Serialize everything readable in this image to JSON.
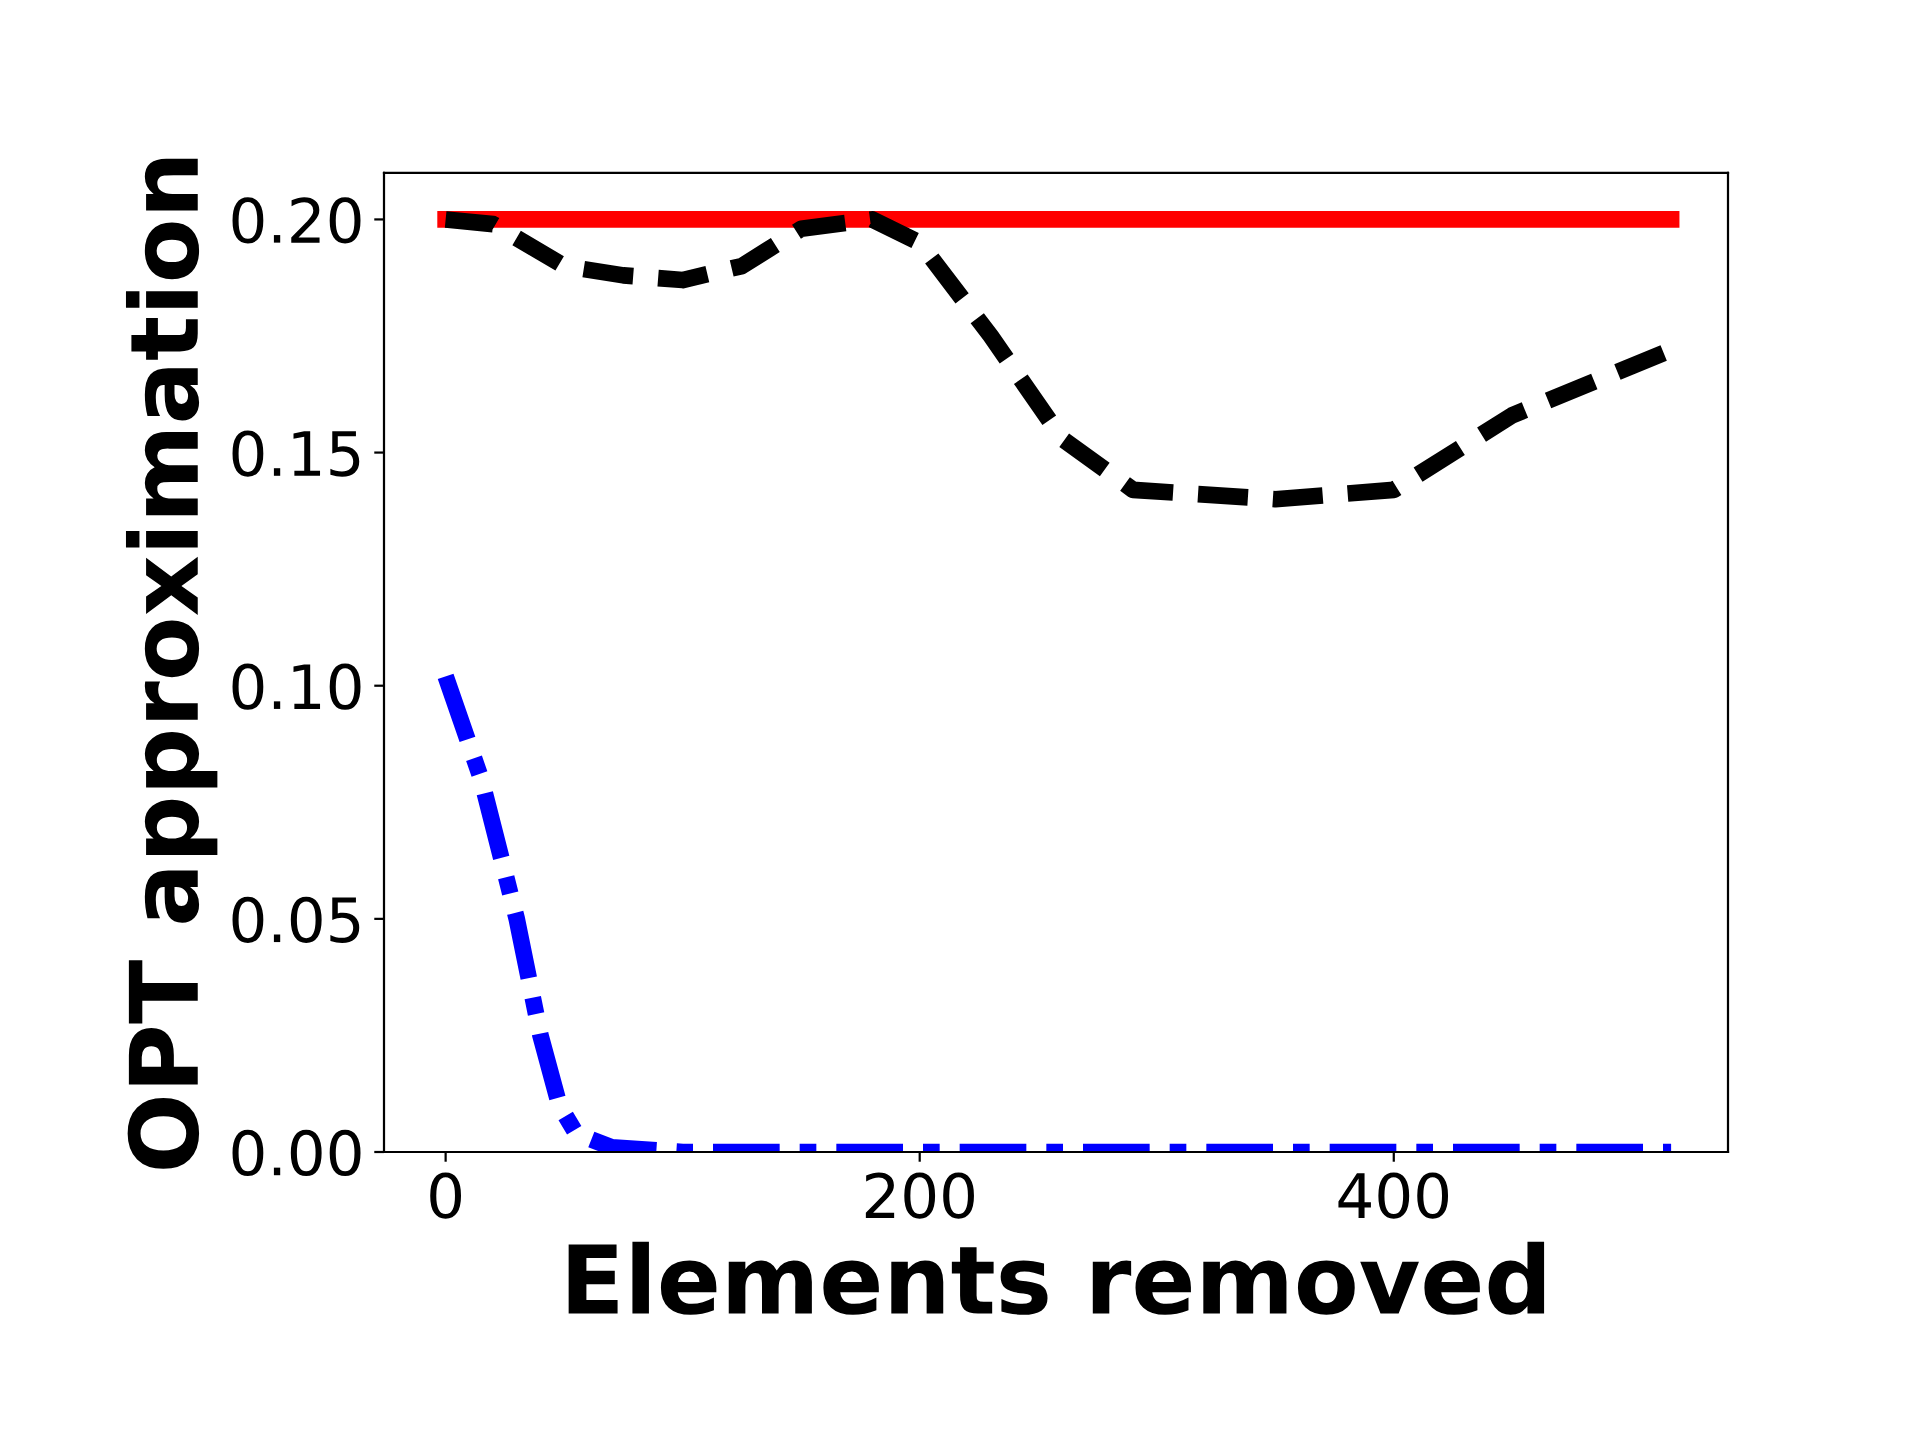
{
  "chart_data": {
    "type": "line",
    "xlabel": "Elements removed",
    "ylabel": "OPT approximation",
    "xlim": [
      -26,
      541
    ],
    "ylim": [
      0,
      0.21
    ],
    "xticks": [
      0,
      200,
      400
    ],
    "yticks": [
      {
        "value": 0,
        "label": "0.00"
      },
      {
        "value": 0.05,
        "label": "0.05"
      },
      {
        "value": 0.1,
        "label": "0.10"
      },
      {
        "value": 0.15,
        "label": "0.15"
      },
      {
        "value": 0.2,
        "label": "0.20"
      }
    ],
    "grid": false,
    "legend": false,
    "series": [
      {
        "color": "#ff0000",
        "line_style": "solid",
        "x": [
          0,
          517
        ],
        "values": [
          0.2,
          0.2
        ]
      },
      {
        "color": "#000000",
        "line_style": "dashed",
        "x": [
          0,
          20,
          50,
          75,
          100,
          125,
          150,
          180,
          200,
          230,
          260,
          290,
          350,
          400,
          450,
          517
        ],
        "values": [
          0.2,
          0.199,
          0.19,
          0.188,
          0.187,
          0.19,
          0.198,
          0.2,
          0.195,
          0.175,
          0.153,
          0.142,
          0.14,
          0.142,
          0.158,
          0.172
        ]
      },
      {
        "color": "#0000ff",
        "line_style": "dashdot",
        "x": [
          0,
          15,
          30,
          40,
          48,
          55,
          70,
          100,
          517
        ],
        "values": [
          0.102,
          0.08,
          0.05,
          0.025,
          0.01,
          0.004,
          0.001,
          0,
          0
        ]
      }
    ]
  }
}
